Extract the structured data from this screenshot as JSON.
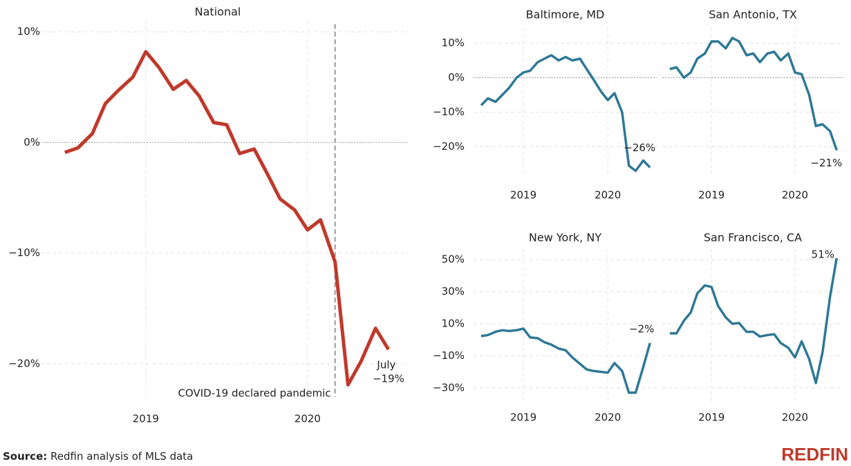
{
  "chart_data": [
    {
      "type": "line",
      "title": "National",
      "color": "#c0392b",
      "x": [
        2018.5,
        2018.58,
        2018.67,
        2018.75,
        2018.83,
        2018.92,
        2019,
        2019.08,
        2019.17,
        2019.25,
        2019.33,
        2019.42,
        2019.5,
        2019.58,
        2019.67,
        2019.75,
        2019.83,
        2019.92,
        2020,
        2020.08,
        2020.17,
        2020.25,
        2020.33,
        2020.42,
        2020.5
      ],
      "values": [
        -0.9,
        -0.5,
        0.8,
        3.5,
        4.7,
        5.9,
        8.2,
        6.8,
        4.8,
        5.6,
        4.2,
        1.8,
        1.6,
        -1.0,
        -0.6,
        -2.8,
        -5.1,
        -6.1,
        -7.9,
        -7.0,
        -10.8,
        -21.9,
        -19.8,
        -16.8,
        -18.7
      ],
      "value_labels": [
        null,
        null,
        null,
        null,
        null,
        null,
        null,
        null,
        null,
        null,
        null,
        null,
        null,
        null,
        null,
        null,
        null,
        null,
        null,
        null,
        null,
        null,
        null,
        null,
        "−19%"
      ],
      "xlim": [
        2018.27,
        2020.62
      ],
      "xticks": [
        2019,
        2020
      ],
      "ylim": [
        -23,
        11
      ],
      "yticks": [
        {
          "value": 10,
          "label": "10%"
        },
        {
          "value": 0,
          "label": "0%"
        },
        {
          "value": -10,
          "label": "−10%"
        },
        {
          "value": -20,
          "label": "−20%"
        }
      ],
      "annotations": [
        {
          "text": "July",
          "x": 2020.5
        },
        {
          "text": "COVID-19 declared pandemic",
          "x": 2020.17
        }
      ],
      "grid": true
    },
    {
      "type": "line",
      "title": "Baltimore, MD",
      "color": "#2e7896",
      "x": [
        2018.5,
        2018.58,
        2018.67,
        2018.75,
        2018.83,
        2018.92,
        2019,
        2019.08,
        2019.17,
        2019.25,
        2019.33,
        2019.42,
        2019.5,
        2019.58,
        2019.67,
        2019.75,
        2019.83,
        2019.92,
        2020,
        2020.08,
        2020.17,
        2020.25,
        2020.33,
        2020.42,
        2020.5
      ],
      "values": [
        -8,
        -6,
        -7,
        -5,
        -3,
        0,
        1.5,
        2,
        4.5,
        5.5,
        6.5,
        5,
        6,
        5,
        5.5,
        2.5,
        -0.5,
        -4,
        -6.5,
        -4.5,
        -10,
        -25.5,
        -27,
        -24,
        -26
      ],
      "value_labels": [
        null,
        null,
        null,
        null,
        null,
        null,
        null,
        null,
        null,
        null,
        null,
        null,
        null,
        null,
        null,
        null,
        null,
        null,
        null,
        null,
        null,
        null,
        null,
        null,
        "−26%"
      ],
      "xlim": [
        2018.41,
        2020.58
      ],
      "xticks": [
        2019,
        2020
      ],
      "ylim": [
        -28.5,
        14.5
      ],
      "yticks": [
        {
          "value": 10,
          "label": "10%"
        },
        {
          "value": 0,
          "label": "0%"
        },
        {
          "value": -10,
          "label": "−10%"
        },
        {
          "value": -20,
          "label": "−20%"
        }
      ],
      "grid": true
    },
    {
      "type": "line",
      "title": "San Antonio, TX",
      "color": "#2e7896",
      "x": [
        2018.5,
        2018.58,
        2018.67,
        2018.75,
        2018.83,
        2018.92,
        2019,
        2019.08,
        2019.17,
        2019.25,
        2019.33,
        2019.42,
        2019.5,
        2019.58,
        2019.67,
        2019.75,
        2019.83,
        2019.92,
        2020,
        2020.08,
        2020.17,
        2020.25,
        2020.33,
        2020.42,
        2020.5
      ],
      "values": [
        2.5,
        3,
        0,
        1.5,
        5.5,
        7,
        10.5,
        10.5,
        8.5,
        11.5,
        10.5,
        6.5,
        7,
        4.5,
        7,
        7.5,
        5,
        7,
        1.5,
        1,
        -5,
        -14,
        -13.5,
        -15.5,
        -21
      ],
      "value_labels": [
        null,
        null,
        null,
        null,
        null,
        null,
        null,
        null,
        null,
        null,
        null,
        null,
        null,
        null,
        null,
        null,
        null,
        null,
        null,
        null,
        null,
        null,
        null,
        null,
        "−21%"
      ],
      "xlim": [
        2018.41,
        2020.58
      ],
      "xticks": [
        2019,
        2020
      ],
      "ylim": [
        -28.5,
        14.5
      ],
      "grid": true
    },
    {
      "type": "line",
      "title": "New York, NY",
      "color": "#2e7896",
      "x": [
        2018.5,
        2018.58,
        2018.67,
        2018.75,
        2018.83,
        2018.92,
        2019,
        2019.08,
        2019.17,
        2019.25,
        2019.33,
        2019.42,
        2019.5,
        2019.58,
        2019.67,
        2019.75,
        2019.83,
        2019.92,
        2020,
        2020.08,
        2020.17,
        2020.25,
        2020.33,
        2020.42,
        2020.5
      ],
      "values": [
        2.3,
        3,
        5,
        6,
        5.5,
        6,
        7,
        1.5,
        1,
        -1.5,
        -3,
        -5.5,
        -6.5,
        -11,
        -15,
        -18.5,
        -19.5,
        -20,
        -20.5,
        -14.5,
        -19.5,
        -33,
        -33,
        -17,
        -2
      ],
      "value_labels": [
        null,
        null,
        null,
        null,
        null,
        null,
        null,
        null,
        null,
        null,
        null,
        null,
        null,
        null,
        null,
        null,
        null,
        null,
        null,
        null,
        null,
        null,
        null,
        null,
        "−2%"
      ],
      "xlim": [
        2018.41,
        2020.58
      ],
      "xticks": [
        2019,
        2020
      ],
      "ylim": [
        -40,
        57
      ],
      "yticks": [
        {
          "value": 50,
          "label": "50%"
        },
        {
          "value": 30,
          "label": "30%"
        },
        {
          "value": 10,
          "label": "10%"
        },
        {
          "value": -10,
          "label": "−10%"
        },
        {
          "value": -30,
          "label": "−30%"
        }
      ],
      "grid": true
    },
    {
      "type": "line",
      "title": "San Francisco, CA",
      "color": "#2e7896",
      "x": [
        2018.5,
        2018.58,
        2018.67,
        2018.75,
        2018.83,
        2018.92,
        2019,
        2019.08,
        2019.17,
        2019.25,
        2019.33,
        2019.42,
        2019.5,
        2019.58,
        2019.67,
        2019.75,
        2019.83,
        2019.92,
        2020,
        2020.08,
        2020.17,
        2020.25,
        2020.33,
        2020.42,
        2020.5
      ],
      "values": [
        4,
        4,
        12,
        17,
        29,
        34,
        33,
        21,
        14,
        10,
        10.5,
        5,
        5,
        2,
        3,
        3.5,
        -2,
        -5,
        -11,
        -1,
        -12,
        -27,
        -8,
        27,
        51
      ],
      "value_labels": [
        null,
        null,
        null,
        null,
        null,
        null,
        null,
        null,
        null,
        null,
        null,
        null,
        null,
        null,
        null,
        null,
        null,
        null,
        null,
        null,
        null,
        null,
        null,
        null,
        "51%"
      ],
      "xlim": [
        2018.41,
        2020.58
      ],
      "xticks": [
        2019,
        2020
      ],
      "ylim": [
        -40,
        57
      ],
      "grid": true
    }
  ],
  "source": {
    "label": "Source:",
    "text": "Redfin analysis of MLS data"
  },
  "logo": "REDFIN"
}
